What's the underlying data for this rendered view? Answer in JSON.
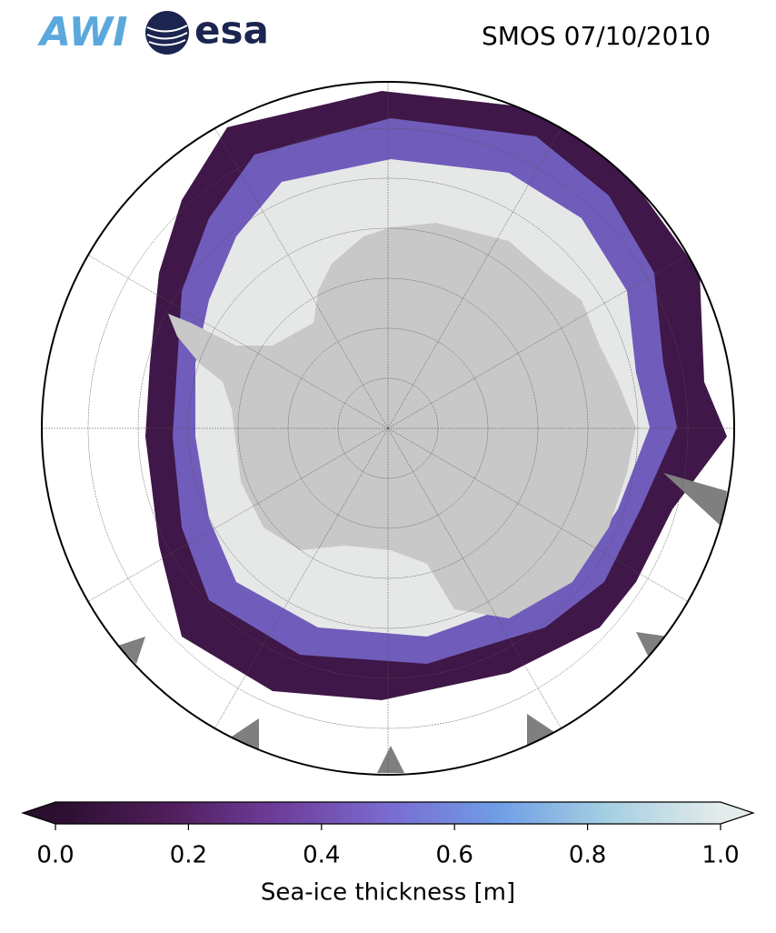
{
  "logos": [
    "AWI",
    "esa"
  ],
  "title": "SMOS 07/10/2010",
  "colorbar": {
    "label": "Sea-ice thickness [m]",
    "clim": [
      0,
      1
    ],
    "ticks": [
      {
        "value": 0,
        "label": "0.0"
      },
      0.2,
      0.4,
      0.6,
      0.8,
      {
        "value": 1,
        "label": "1.0"
      }
    ],
    "colormap": [
      "#2a0f2e",
      "#4f1d5a",
      "#6e3d9a",
      "#7a6bd0",
      "#6f9ee6",
      "#a6d0e2",
      "#e4ebeb"
    ],
    "extend": "both"
  }
}
